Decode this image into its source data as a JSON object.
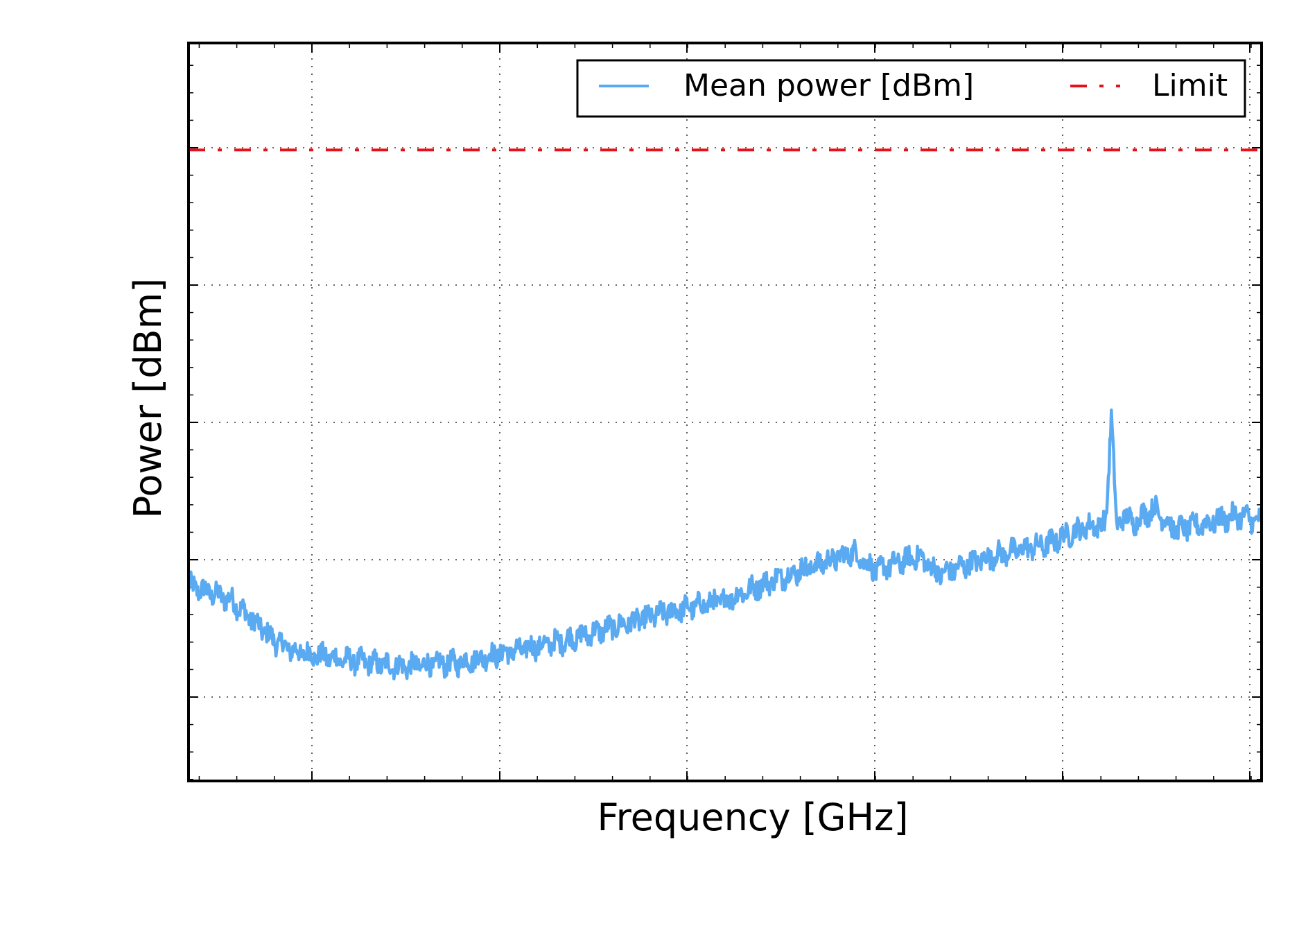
{
  "chart_data": {
    "type": "line",
    "title": "",
    "xlabel": "Frequency [GHz]",
    "ylabel": "Power [dBm]",
    "x_tick_labels_shown": false,
    "y_tick_labels_shown": false,
    "xlim": [
      0,
      1
    ],
    "ylim": [
      0,
      1
    ],
    "grid": true,
    "grid_style": "dotted",
    "legend_position": "top-right",
    "legend_columns": 2,
    "series": [
      {
        "name": "Mean power [dBm]",
        "color": "#5aaaf2",
        "style": "solid",
        "noisy": true,
        "x": [
          0.0,
          0.04,
          0.08,
          0.1,
          0.14,
          0.2,
          0.25,
          0.3,
          0.35,
          0.4,
          0.45,
          0.5,
          0.55,
          0.6,
          0.62,
          0.64,
          0.66,
          0.68,
          0.7,
          0.72,
          0.75,
          0.78,
          0.8,
          0.82,
          0.84,
          0.855,
          0.86,
          0.865,
          0.87,
          0.88,
          0.9,
          0.92,
          0.95,
          0.98,
          1.0
        ],
        "y": [
          0.265,
          0.245,
          0.19,
          0.175,
          0.165,
          0.155,
          0.16,
          0.175,
          0.19,
          0.21,
          0.23,
          0.245,
          0.275,
          0.3,
          0.31,
          0.285,
          0.295,
          0.305,
          0.28,
          0.29,
          0.305,
          0.315,
          0.32,
          0.335,
          0.345,
          0.35,
          0.5,
          0.34,
          0.36,
          0.35,
          0.37,
          0.34,
          0.35,
          0.36,
          0.35
        ]
      },
      {
        "name": "Limit",
        "color": "#e8111a",
        "style": "dashdot",
        "x": [
          0.0,
          1.0
        ],
        "y": [
          0.855,
          0.855
        ]
      }
    ]
  }
}
